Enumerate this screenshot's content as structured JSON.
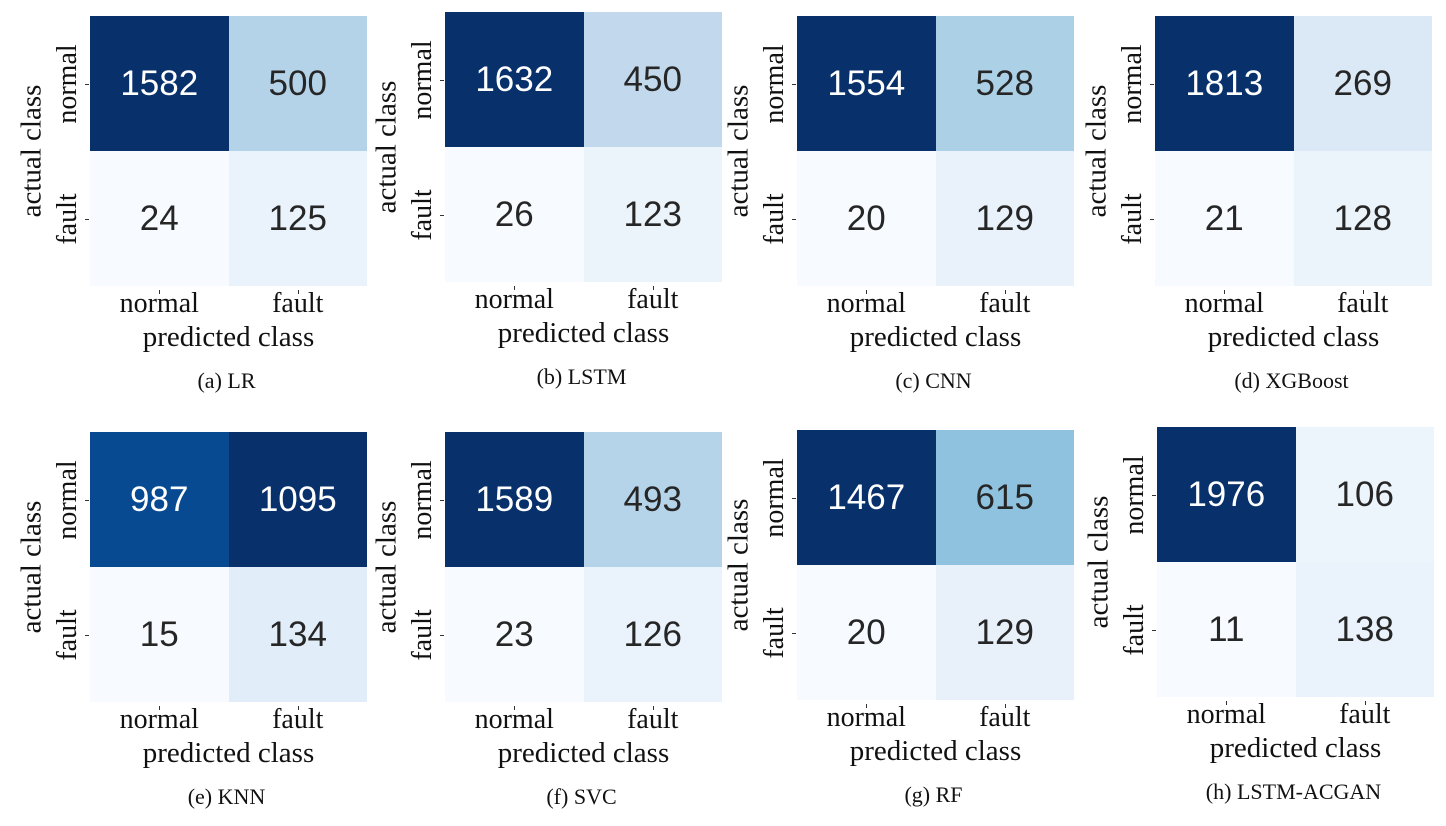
{
  "chart_data": [
    {
      "type": "heatmap",
      "caption": "(a) LR",
      "xlabel": "predicted class",
      "ylabel": "actual class",
      "x_categories": [
        "normal",
        "fault"
      ],
      "y_categories": [
        "normal",
        "fault"
      ],
      "values": [
        [
          1582,
          500
        ],
        [
          24,
          125
        ]
      ],
      "colormap": "Blues"
    },
    {
      "type": "heatmap",
      "caption": "(b) LSTM",
      "xlabel": "predicted class",
      "ylabel": "actual class",
      "x_categories": [
        "normal",
        "fault"
      ],
      "y_categories": [
        "normal",
        "fault"
      ],
      "values": [
        [
          1632,
          450
        ],
        [
          26,
          123
        ]
      ],
      "colormap": "Blues"
    },
    {
      "type": "heatmap",
      "caption": "(c) CNN",
      "xlabel": "predicted class",
      "ylabel": "actual class",
      "x_categories": [
        "normal",
        "fault"
      ],
      "y_categories": [
        "normal",
        "fault"
      ],
      "values": [
        [
          1554,
          528
        ],
        [
          20,
          129
        ]
      ],
      "colormap": "Blues"
    },
    {
      "type": "heatmap",
      "caption": "(d) XGBoost",
      "xlabel": "predicted class",
      "ylabel": "actual class",
      "x_categories": [
        "normal",
        "fault"
      ],
      "y_categories": [
        "normal",
        "fault"
      ],
      "values": [
        [
          1813,
          269
        ],
        [
          21,
          128
        ]
      ],
      "colormap": "Blues"
    },
    {
      "type": "heatmap",
      "caption": "(e) KNN",
      "xlabel": "predicted class",
      "ylabel": "actual class",
      "x_categories": [
        "normal",
        "fault"
      ],
      "y_categories": [
        "normal",
        "fault"
      ],
      "values": [
        [
          987,
          1095
        ],
        [
          15,
          134
        ]
      ],
      "colormap": "Blues"
    },
    {
      "type": "heatmap",
      "caption": "(f) SVC",
      "xlabel": "predicted class",
      "ylabel": "actual class",
      "x_categories": [
        "normal",
        "fault"
      ],
      "y_categories": [
        "normal",
        "fault"
      ],
      "values": [
        [
          1589,
          493
        ],
        [
          23,
          126
        ]
      ],
      "colormap": "Blues"
    },
    {
      "type": "heatmap",
      "caption": "(g) RF",
      "xlabel": "predicted class",
      "ylabel": "actual class",
      "x_categories": [
        "normal",
        "fault"
      ],
      "y_categories": [
        "normal",
        "fault"
      ],
      "values": [
        [
          1467,
          615
        ],
        [
          20,
          129
        ]
      ],
      "colormap": "Blues"
    },
    {
      "type": "heatmap",
      "caption": "(h) LSTM-ACGAN",
      "xlabel": "predicted class",
      "ylabel": "actual class",
      "x_categories": [
        "normal",
        "fault"
      ],
      "y_categories": [
        "normal",
        "fault"
      ],
      "values": [
        [
          1976,
          106
        ],
        [
          11,
          138
        ]
      ],
      "colormap": "Blues"
    }
  ]
}
